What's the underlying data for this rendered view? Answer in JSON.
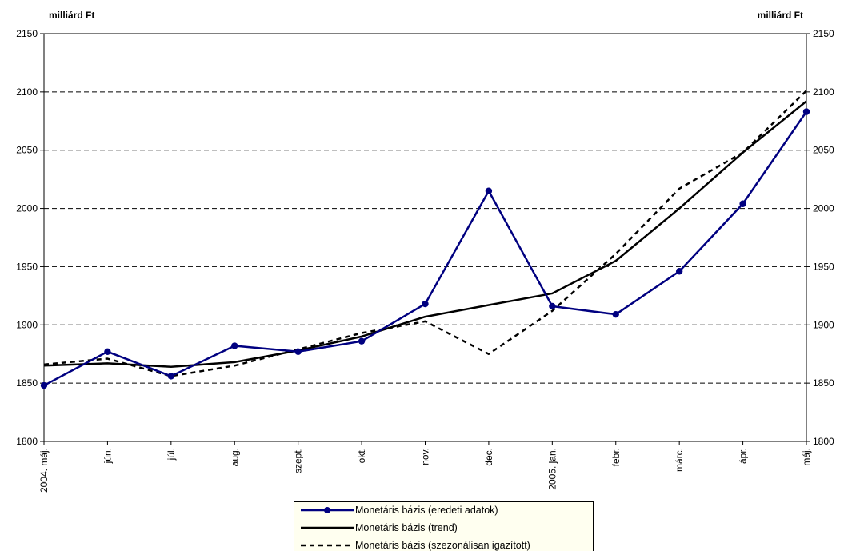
{
  "chart_data": {
    "type": "line",
    "y_unit_left": "milliárd Ft",
    "y_unit_right": "milliárd Ft",
    "ylim": [
      1800,
      2150
    ],
    "yticks": [
      1800,
      1850,
      1900,
      1950,
      2000,
      2050,
      2100,
      2150
    ],
    "categories": [
      "2004. máj.",
      "jún.",
      "júl.",
      "aug.",
      "szept.",
      "okt.",
      "nov.",
      "dec.",
      "2005. jan.",
      "febr.",
      "márc.",
      "ápr.",
      "máj."
    ],
    "grid": true,
    "legend_position": "bottom",
    "series": [
      {
        "name": "Monetáris bázis (eredeti adatok)",
        "color": "#000080",
        "style": "solid-markers",
        "values": [
          1848,
          1877,
          1856,
          1882,
          1877,
          1886,
          1918,
          2015,
          1916,
          1909,
          1946,
          2004,
          2083
        ]
      },
      {
        "name": "Monetáris bázis (trend)",
        "color": "#000000",
        "style": "solid",
        "values": [
          1865,
          1867,
          1864,
          1868,
          1878,
          1890,
          1907,
          1917,
          1927,
          1955,
          2000,
          2048,
          2092
        ]
      },
      {
        "name": "Monetáris bázis (szezonálisan igazított)",
        "color": "#000000",
        "style": "dashed",
        "values": [
          1866,
          1871,
          1856,
          1865,
          1879,
          1893,
          1903,
          1875,
          1912,
          1961,
          2017,
          2048,
          2101
        ]
      }
    ]
  }
}
